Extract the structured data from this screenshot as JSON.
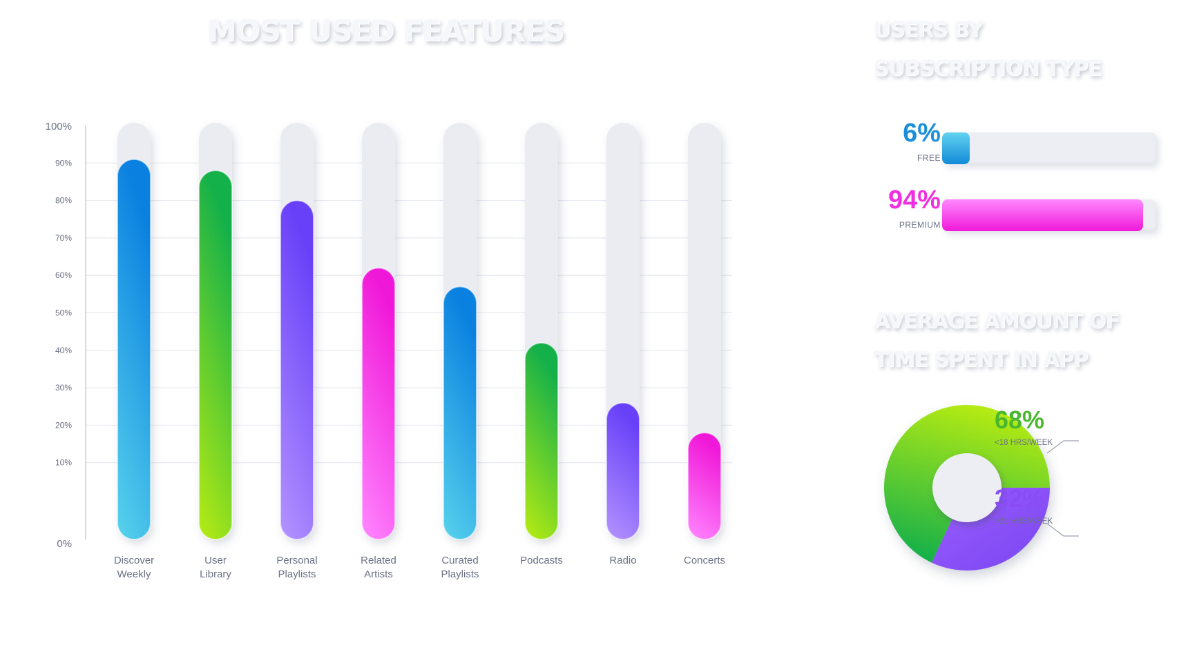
{
  "titles": {
    "main": "MOST USED FEATURES",
    "subscription_line1": "USERS BY",
    "subscription_line2": "SUBSCRIPTION TYPE",
    "time_line1": "AVERAGE AMOUNT OF",
    "time_line2": "TIME SPENT IN APP"
  },
  "chart_data": [
    {
      "type": "bar",
      "title": "MOST USED FEATURES",
      "categories": [
        [
          "Discover",
          "Weekly"
        ],
        [
          "User",
          "Library"
        ],
        [
          "Personal",
          "Playlists"
        ],
        [
          "Related",
          "Artists"
        ],
        [
          "Curated",
          "Playlists"
        ],
        [
          "Podcasts"
        ],
        [
          "Radio"
        ],
        [
          "Concerts"
        ]
      ],
      "values": [
        91,
        88,
        80,
        62,
        57,
        42,
        26,
        18
      ],
      "ylim": [
        0,
        100
      ],
      "yticks": [
        {
          "value": 0,
          "label": "0%"
        },
        {
          "value": 10,
          "label": "10%"
        },
        {
          "value": 20,
          "label": "20%"
        },
        {
          "value": 30,
          "label": "30%"
        },
        {
          "value": 40,
          "label": "40%"
        },
        {
          "value": 50,
          "label": "50%"
        },
        {
          "value": 60,
          "label": "60%"
        },
        {
          "value": 70,
          "label": "70%"
        },
        {
          "value": 80,
          "label": "80%"
        },
        {
          "value": 90,
          "label": "90%"
        },
        {
          "value": 100,
          "label": "100%"
        }
      ],
      "grid": true,
      "bar_gradients": [
        [
          "#58d3ec",
          "#0a80e0"
        ],
        [
          "#b8ec12",
          "#14b04a"
        ],
        [
          "#b494ff",
          "#6840f8"
        ],
        [
          "#ff88ff",
          "#f018d8"
        ],
        [
          "#58d3ec",
          "#0a80e0"
        ],
        [
          "#b8ec12",
          "#14b04a"
        ],
        [
          "#b494ff",
          "#6840f8"
        ],
        [
          "#ff88ff",
          "#f018d8"
        ]
      ]
    },
    {
      "type": "bar",
      "title": "USERS BY SUBSCRIPTION TYPE",
      "orientation": "horizontal",
      "categories": [
        "FREE",
        "PREMIUM"
      ],
      "values": [
        6,
        94
      ],
      "labels": [
        "6%",
        "94%"
      ],
      "colors": [
        "#1a8fd8",
        "#f02fe0"
      ],
      "xlim": [
        0,
        100
      ]
    },
    {
      "type": "pie",
      "style": "donut",
      "title": "AVERAGE AMOUNT OF TIME SPENT IN APP",
      "categories": [
        "<18 HRS/WEEK",
        ">21 HRS/WEEK"
      ],
      "values": [
        68,
        32
      ],
      "labels": [
        "68%",
        "32%"
      ],
      "colors": [
        "#4ab82e",
        "#8a4cf5"
      ]
    }
  ]
}
